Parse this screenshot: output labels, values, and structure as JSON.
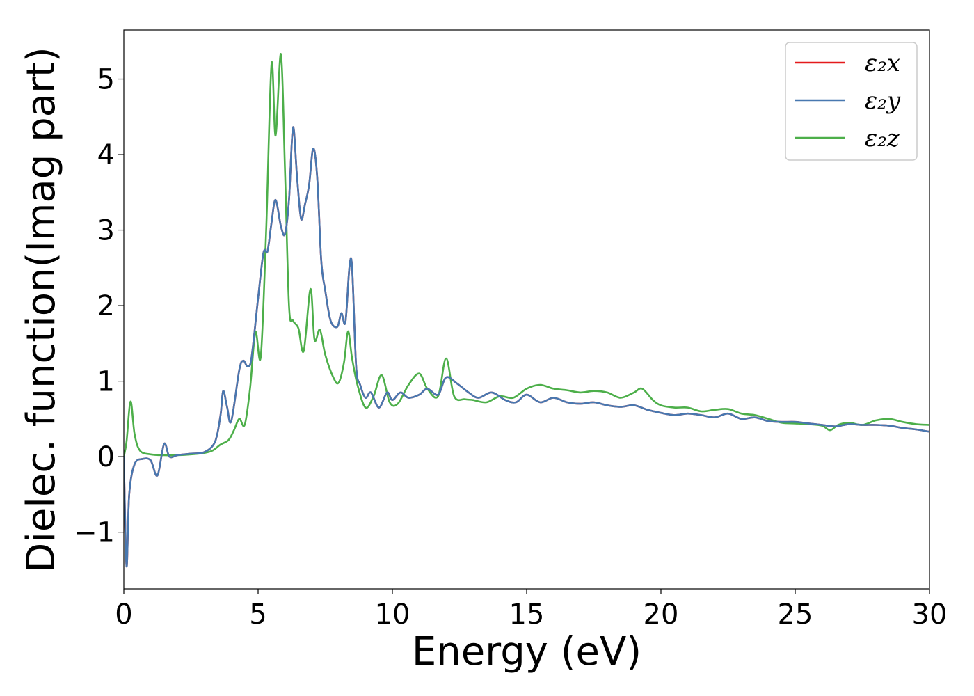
{
  "chart_data": {
    "type": "line",
    "title": "",
    "xlabel": "Energy (eV)",
    "ylabel": "Dielec. function(Imag part)",
    "xlim": [
      0,
      30
    ],
    "ylim": [
      -1.75,
      5.65
    ],
    "xticks": [
      0,
      5,
      10,
      15,
      20,
      25,
      30
    ],
    "xtick_labels": [
      "0",
      "5",
      "10",
      "15",
      "20",
      "25",
      "30"
    ],
    "yticks": [
      -1,
      0,
      1,
      2,
      3,
      4,
      5
    ],
    "ytick_labels": [
      "−1",
      "0",
      "1",
      "2",
      "3",
      "4",
      "5"
    ],
    "grid": false,
    "legend_position": "top-right",
    "series": [
      {
        "name": "ε₂x",
        "color": "#e41a1c",
        "x": [
          0,
          0.1,
          0.2,
          0.4,
          0.7,
          1.0,
          1.25,
          1.5,
          1.7,
          2.0,
          2.5,
          3.0,
          3.4,
          3.6,
          3.7,
          3.85,
          4.0,
          4.3,
          4.45,
          4.6,
          4.75,
          5.0,
          5.2,
          5.35,
          5.5,
          5.65,
          5.85,
          6.0,
          6.15,
          6.3,
          6.45,
          6.6,
          6.75,
          6.9,
          7.05,
          7.2,
          7.35,
          7.5,
          7.7,
          7.95,
          8.1,
          8.25,
          8.4,
          8.5,
          8.65,
          8.8,
          9.0,
          9.2,
          9.5,
          9.8,
          10.0,
          10.3,
          10.6,
          11.0,
          11.3,
          11.7,
          12.0,
          12.4,
          12.8,
          13.2,
          13.7,
          14.2,
          14.6,
          15.0,
          15.5,
          16.0,
          16.5,
          17.0,
          17.5,
          18.0,
          18.5,
          19.0,
          19.5,
          20.0,
          20.5,
          21.0,
          21.5,
          22.0,
          22.5,
          23.0,
          23.5,
          24.0,
          24.5,
          25.0,
          25.5,
          26.0,
          26.5,
          27.0,
          27.5,
          28.0,
          28.5,
          29.0,
          29.5,
          30.0
        ],
        "y": [
          0,
          -1.45,
          -0.5,
          -0.1,
          -0.03,
          -0.05,
          -0.25,
          0.17,
          0.0,
          0.02,
          0.04,
          0.06,
          0.2,
          0.55,
          0.87,
          0.65,
          0.47,
          1.15,
          1.27,
          1.2,
          1.3,
          2.1,
          2.7,
          2.72,
          3.1,
          3.4,
          3.05,
          2.95,
          3.4,
          4.36,
          3.7,
          3.15,
          3.35,
          3.6,
          4.08,
          3.7,
          2.6,
          2.2,
          1.8,
          1.72,
          1.9,
          1.78,
          2.5,
          2.5,
          1.2,
          0.95,
          0.78,
          0.85,
          0.65,
          0.85,
          0.75,
          0.85,
          0.78,
          0.82,
          0.9,
          0.82,
          1.05,
          0.97,
          0.86,
          0.78,
          0.85,
          0.75,
          0.72,
          0.82,
          0.72,
          0.78,
          0.72,
          0.7,
          0.72,
          0.68,
          0.66,
          0.68,
          0.62,
          0.58,
          0.55,
          0.57,
          0.55,
          0.52,
          0.57,
          0.5,
          0.52,
          0.47,
          0.46,
          0.46,
          0.44,
          0.42,
          0.4,
          0.43,
          0.42,
          0.42,
          0.41,
          0.38,
          0.36,
          0.33
        ]
      },
      {
        "name": "ε₂y",
        "color": "#4878b0",
        "x": [
          0,
          0.1,
          0.2,
          0.4,
          0.7,
          1.0,
          1.25,
          1.5,
          1.7,
          2.0,
          2.5,
          3.0,
          3.4,
          3.6,
          3.7,
          3.85,
          4.0,
          4.3,
          4.45,
          4.6,
          4.75,
          5.0,
          5.2,
          5.35,
          5.5,
          5.65,
          5.85,
          6.0,
          6.15,
          6.3,
          6.45,
          6.6,
          6.75,
          6.9,
          7.05,
          7.2,
          7.35,
          7.5,
          7.7,
          7.95,
          8.1,
          8.25,
          8.4,
          8.5,
          8.65,
          8.8,
          9.0,
          9.2,
          9.5,
          9.8,
          10.0,
          10.3,
          10.6,
          11.0,
          11.3,
          11.7,
          12.0,
          12.4,
          12.8,
          13.2,
          13.7,
          14.2,
          14.6,
          15.0,
          15.5,
          16.0,
          16.5,
          17.0,
          17.5,
          18.0,
          18.5,
          19.0,
          19.5,
          20.0,
          20.5,
          21.0,
          21.5,
          22.0,
          22.5,
          23.0,
          23.5,
          24.0,
          24.5,
          25.0,
          25.5,
          26.0,
          26.5,
          27.0,
          27.5,
          28.0,
          28.5,
          29.0,
          29.5,
          30.0
        ],
        "y": [
          0,
          -1.45,
          -0.5,
          -0.1,
          -0.03,
          -0.05,
          -0.25,
          0.17,
          0.0,
          0.02,
          0.04,
          0.06,
          0.2,
          0.55,
          0.87,
          0.65,
          0.47,
          1.15,
          1.27,
          1.2,
          1.3,
          2.1,
          2.7,
          2.72,
          3.1,
          3.4,
          3.05,
          2.95,
          3.4,
          4.36,
          3.7,
          3.15,
          3.35,
          3.6,
          4.08,
          3.7,
          2.6,
          2.2,
          1.8,
          1.72,
          1.9,
          1.78,
          2.5,
          2.5,
          1.2,
          0.95,
          0.78,
          0.85,
          0.65,
          0.85,
          0.75,
          0.85,
          0.78,
          0.82,
          0.9,
          0.82,
          1.05,
          0.97,
          0.86,
          0.78,
          0.85,
          0.75,
          0.72,
          0.82,
          0.72,
          0.78,
          0.72,
          0.7,
          0.72,
          0.68,
          0.66,
          0.68,
          0.62,
          0.58,
          0.55,
          0.57,
          0.55,
          0.52,
          0.57,
          0.5,
          0.52,
          0.47,
          0.46,
          0.46,
          0.44,
          0.42,
          0.4,
          0.43,
          0.42,
          0.42,
          0.41,
          0.38,
          0.36,
          0.33
        ]
      },
      {
        "name": "ε₂z",
        "color": "#4daf4a",
        "x": [
          0,
          0.1,
          0.25,
          0.4,
          0.6,
          1.0,
          1.5,
          2.0,
          2.5,
          3.0,
          3.3,
          3.6,
          3.9,
          4.1,
          4.3,
          4.5,
          4.7,
          4.9,
          5.1,
          5.3,
          5.5,
          5.65,
          5.85,
          6.0,
          6.15,
          6.3,
          6.5,
          6.7,
          6.95,
          7.1,
          7.3,
          7.5,
          7.8,
          8.0,
          8.2,
          8.35,
          8.5,
          8.7,
          9.0,
          9.3,
          9.6,
          9.9,
          10.2,
          10.6,
          11.0,
          11.3,
          11.7,
          12.0,
          12.3,
          12.7,
          13.0,
          13.5,
          14.0,
          14.5,
          15.0,
          15.5,
          16.0,
          16.5,
          17.0,
          17.5,
          18.0,
          18.5,
          19.0,
          19.3,
          19.7,
          20.0,
          20.5,
          21.0,
          21.5,
          22.0,
          22.5,
          23.0,
          23.5,
          24.0,
          24.5,
          25.0,
          25.5,
          26.0,
          26.3,
          26.6,
          27.0,
          27.5,
          28.0,
          28.5,
          29.0,
          29.5,
          30.0
        ],
        "y": [
          0,
          0.2,
          0.73,
          0.3,
          0.08,
          0.03,
          0.02,
          0.02,
          0.03,
          0.05,
          0.08,
          0.16,
          0.22,
          0.35,
          0.5,
          0.42,
          0.9,
          1.65,
          1.33,
          3.0,
          5.2,
          4.25,
          5.33,
          3.8,
          2.0,
          1.8,
          1.7,
          1.4,
          2.22,
          1.55,
          1.68,
          1.35,
          1.05,
          0.98,
          1.25,
          1.66,
          1.3,
          0.95,
          0.65,
          0.8,
          1.08,
          0.72,
          0.7,
          0.95,
          1.1,
          0.9,
          0.8,
          1.3,
          0.8,
          0.76,
          0.75,
          0.72,
          0.8,
          0.78,
          0.9,
          0.95,
          0.9,
          0.88,
          0.85,
          0.87,
          0.85,
          0.78,
          0.85,
          0.9,
          0.75,
          0.68,
          0.65,
          0.65,
          0.6,
          0.62,
          0.63,
          0.57,
          0.55,
          0.5,
          0.45,
          0.44,
          0.43,
          0.41,
          0.35,
          0.42,
          0.45,
          0.42,
          0.48,
          0.5,
          0.46,
          0.43,
          0.42
        ]
      }
    ]
  }
}
